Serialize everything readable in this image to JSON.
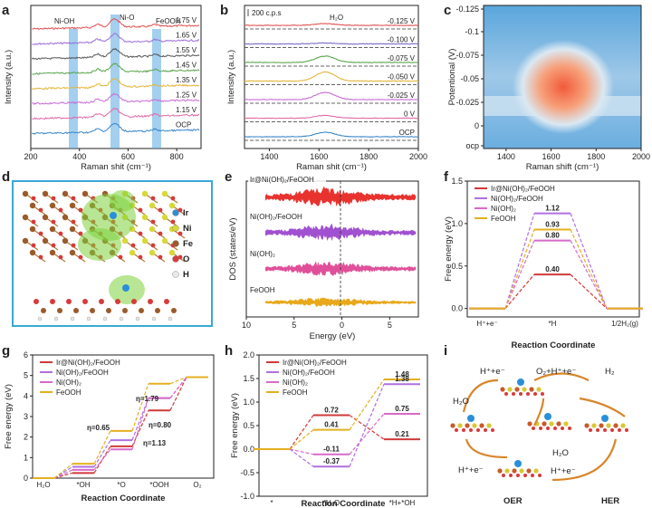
{
  "panel_labels": [
    "a",
    "b",
    "c",
    "d",
    "e",
    "f",
    "g",
    "h",
    "i"
  ],
  "chart_data": [
    {
      "panel": "a",
      "type": "line",
      "xlabel": "Raman shit (cm⁻¹)",
      "ylabel": "Intensity (a.u.)",
      "xlim": [
        200,
        900
      ],
      "xticks": [
        "200",
        "400",
        "600",
        "800"
      ],
      "band_labels": [
        "Ni-OH",
        "Ni-O",
        "FeOOH"
      ],
      "bands": [
        [
          370,
          400
        ],
        [
          525,
          555
        ],
        [
          700,
          725
        ]
      ],
      "series": [
        {
          "name": "1.75 V",
          "color": "#e05050"
        },
        {
          "name": "1.65 V",
          "color": "#9a6cd8"
        },
        {
          "name": "1.55 V",
          "color": "#555555"
        },
        {
          "name": "1.45 V",
          "color": "#5aa54c"
        },
        {
          "name": "1.35 V",
          "color": "#e4b53a"
        },
        {
          "name": "1.25 V",
          "color": "#c86ad8"
        },
        {
          "name": "1.15 V",
          "color": "#e06aa8"
        },
        {
          "name": "OCP",
          "color": "#3a86c8"
        }
      ]
    },
    {
      "panel": "b",
      "type": "line",
      "xlabel": "Raman shit (cm⁻¹)",
      "ylabel": "Intensity (a.u.)",
      "xlim": [
        1300,
        2000
      ],
      "xticks": [
        "1400",
        "1600",
        "1800",
        "2000"
      ],
      "scale_bar": "200 c.p.s",
      "peak_label": "H₂O",
      "series": [
        {
          "name": "-0.125 V",
          "color": "#e05050"
        },
        {
          "name": "-0.100 V",
          "color": "#7a6cc8"
        },
        {
          "name": "-0.075 V",
          "color": "#5aa54c"
        },
        {
          "name": "-0.050 V",
          "color": "#e4b53a"
        },
        {
          "name": "-0.025 V",
          "color": "#c86ad8"
        },
        {
          "name": "0 V",
          "color": "#e06aa8"
        },
        {
          "name": "OCP",
          "color": "#3a86c8"
        }
      ]
    },
    {
      "panel": "c",
      "type": "heatmap",
      "xlabel": "Raman shift (cm⁻¹)",
      "ylabel": "Potentional (V)",
      "xlim": [
        1300,
        2000
      ],
      "xticks": [
        "1400",
        "1600",
        "1800",
        "2000"
      ],
      "yticks": [
        "-0.125",
        "-0.1",
        "-0.075",
        "-0.05",
        "-0.025",
        "0",
        "ocp"
      ]
    },
    {
      "panel": "e",
      "type": "area",
      "xlabel": "Energy (eV)",
      "ylabel": "DOS (states/eV)",
      "xlim": [
        -10,
        8
      ],
      "xticks": [
        "10",
        "5",
        "0",
        "5"
      ],
      "series": [
        {
          "name": "Ir@Ni(OH)₂/FeOOH",
          "color": "#e8322e"
        },
        {
          "name": "Ni(OH)₂/FeOOH",
          "color": "#a050d0"
        },
        {
          "name": "Ni(OH)₂",
          "color": "#e0509a"
        },
        {
          "name": "FeOOH",
          "color": "#e8a81a"
        }
      ]
    },
    {
      "panel": "f",
      "type": "line",
      "xlabel": "Reaction Coordinate",
      "ylabel": "Free energy (eV)",
      "ylim": [
        -0.1,
        1.5
      ],
      "yticks": [
        "0.0",
        "0.5",
        "1.0",
        "1.5"
      ],
      "steps": [
        "H⁺+e⁻",
        "*H",
        "1/2H₂(g)"
      ],
      "series": [
        {
          "name": "Ir@Ni(OH)₂/FeOOH",
          "color": "#d03a3a",
          "values": [
            0,
            0.4,
            0
          ]
        },
        {
          "name": "Ni(OH)₂/FeOOH",
          "color": "#b070e0",
          "values": [
            0,
            1.12,
            0
          ]
        },
        {
          "name": "Ni(OH)₂",
          "color": "#d86ac8",
          "values": [
            0,
            0.8,
            0
          ]
        },
        {
          "name": "FeOOH",
          "color": "#e4b020",
          "values": [
            0,
            0.93,
            0
          ]
        }
      ],
      "value_labels": [
        "0.40",
        "1.12",
        "0.80",
        "0.93"
      ]
    },
    {
      "panel": "g",
      "type": "line",
      "xlabel": "Reaction Coordinate",
      "ylabel": "Free energy (eV)",
      "ylim": [
        0,
        6
      ],
      "yticks": [
        "0",
        "1",
        "2",
        "3",
        "4",
        "5",
        "6"
      ],
      "steps": [
        "H₂O",
        "*OH",
        "*O",
        "*OOH",
        "O₂"
      ],
      "series": [
        {
          "name": "Ir@Ni(OH)₂/FeOOH",
          "color": "#d03a3a",
          "values": [
            0,
            0.25,
            1.55,
            3.3,
            4.92
          ]
        },
        {
          "name": "Ni(OH)₂/FeOOH",
          "color": "#b070e0",
          "values": [
            0,
            0.55,
            1.85,
            3.9,
            4.92
          ]
        },
        {
          "name": "Ni(OH)₂",
          "color": "#d86ac8",
          "values": [
            0,
            0.4,
            1.4,
            3.9,
            4.92
          ]
        },
        {
          "name": "FeOOH",
          "color": "#e4b020",
          "values": [
            0,
            0.7,
            2.3,
            4.6,
            4.92
          ]
        }
      ],
      "annotations": [
        "η=1.79",
        "η=0.65",
        "η=0.80",
        "η=1.13"
      ]
    },
    {
      "panel": "h",
      "type": "line",
      "xlabel": "Reaction Coordinate",
      "ylabel": "Free energy (eV)",
      "ylim": [
        -1.0,
        2.0
      ],
      "yticks": [
        "-1.0",
        "-0.5",
        "0.0",
        "0.5",
        "1.0",
        "1.5",
        "2.0"
      ],
      "steps": [
        "*",
        "*H₂O",
        "*H+*OH"
      ],
      "series": [
        {
          "name": "Ir@Ni(OH)₂/FeOOH",
          "color": "#d03a3a",
          "values": [
            0,
            0.72,
            0.21
          ]
        },
        {
          "name": "Ni(OH)₂/FeOOH",
          "color": "#b070e0",
          "values": [
            0,
            -0.37,
            1.38
          ]
        },
        {
          "name": "Ni(OH)₂",
          "color": "#d86ac8",
          "values": [
            0,
            -0.11,
            0.75
          ]
        },
        {
          "name": "FeOOH",
          "color": "#e4b020",
          "values": [
            0,
            0.41,
            1.48
          ]
        }
      ],
      "value_labels": [
        "0.72",
        "0.21",
        "-0.37",
        "1.38",
        "-0.11",
        "0.75",
        "0.41",
        "1.48"
      ]
    }
  ],
  "panel_d": {
    "legend": [
      "Ir",
      "Ni",
      "Fe",
      "O",
      "H"
    ],
    "colors": [
      "#2a8fd8",
      "#d8d83a",
      "#9b5a2a",
      "#d83a3a",
      "#e8e8e8"
    ]
  },
  "panel_i": {
    "labels": [
      "H⁺+e⁻",
      "O₂+H⁺+e⁻",
      "H₂",
      "H₂O",
      "H₂O",
      "H⁺+e⁻",
      "H⁺+e⁻",
      "OER",
      "HER"
    ]
  }
}
